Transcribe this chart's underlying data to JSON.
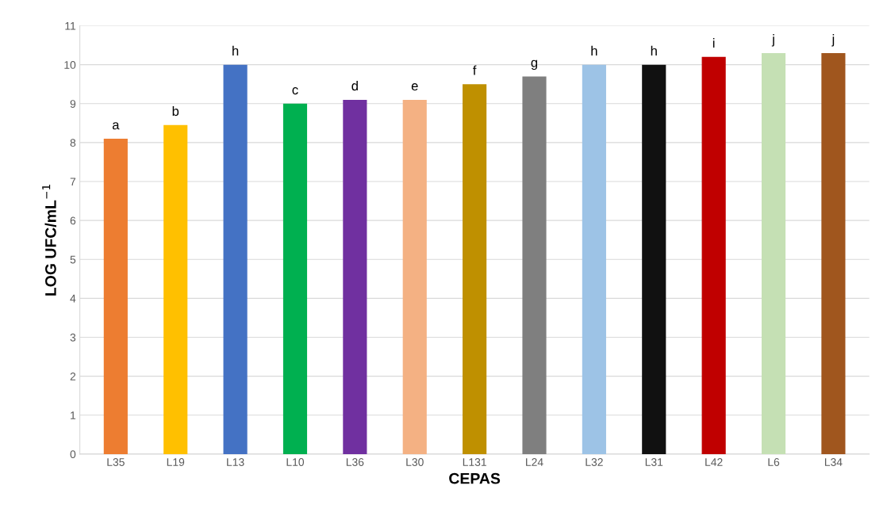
{
  "chart_data": {
    "type": "bar",
    "xlabel": "CEPAS",
    "ylabel": "LOG UFC/mL$^{−1}$",
    "categories": [
      "L35",
      "L19",
      "L13",
      "L10",
      "L36",
      "L30",
      "L131",
      "L24",
      "L32",
      "L31",
      "L42",
      "L6",
      "L34"
    ],
    "values": [
      8.1,
      8.45,
      10.0,
      9.0,
      9.1,
      9.1,
      9.5,
      9.7,
      10.0,
      10.0,
      10.2,
      10.3,
      10.3
    ],
    "colors": [
      "#ed7d31",
      "#ffc000",
      "#4472c4",
      "#00b050",
      "#7030a0",
      "#f4b183",
      "#bf9000",
      "#7f7f7f",
      "#9dc3e6",
      "#111111",
      "#c00000",
      "#c5e0b4",
      "#a0561e"
    ],
    "ylim": [
      0,
      11
    ],
    "yticks": [
      0,
      1,
      2,
      3,
      4,
      5,
      6,
      7,
      8,
      9,
      10,
      11
    ],
    "grid": "y",
    "annotations": [
      {
        "text": "a",
        "x": "L35",
        "y": 8.1
      },
      {
        "text": "b",
        "x": "L19",
        "y": 8.45
      },
      {
        "text": "h",
        "x": "L13",
        "y": 10.0
      },
      {
        "text": "c",
        "x": "L10",
        "y": 9.0
      },
      {
        "text": "d",
        "x": "L36",
        "y": 9.1
      },
      {
        "text": "e",
        "x": "L30",
        "y": 9.1
      },
      {
        "text": "f",
        "x": "L131",
        "y": 9.5
      },
      {
        "text": "g",
        "x": "L24",
        "y": 9.7
      },
      {
        "text": "h",
        "x": "L32",
        "y": 10.0
      },
      {
        "text": "h",
        "x": "L31",
        "y": 10.0
      },
      {
        "text": "i",
        "x": "L42",
        "y": 10.2
      },
      {
        "text": "j",
        "x": "L6",
        "y": 10.3
      },
      {
        "text": "j",
        "x": "L34",
        "y": 10.3
      }
    ]
  }
}
